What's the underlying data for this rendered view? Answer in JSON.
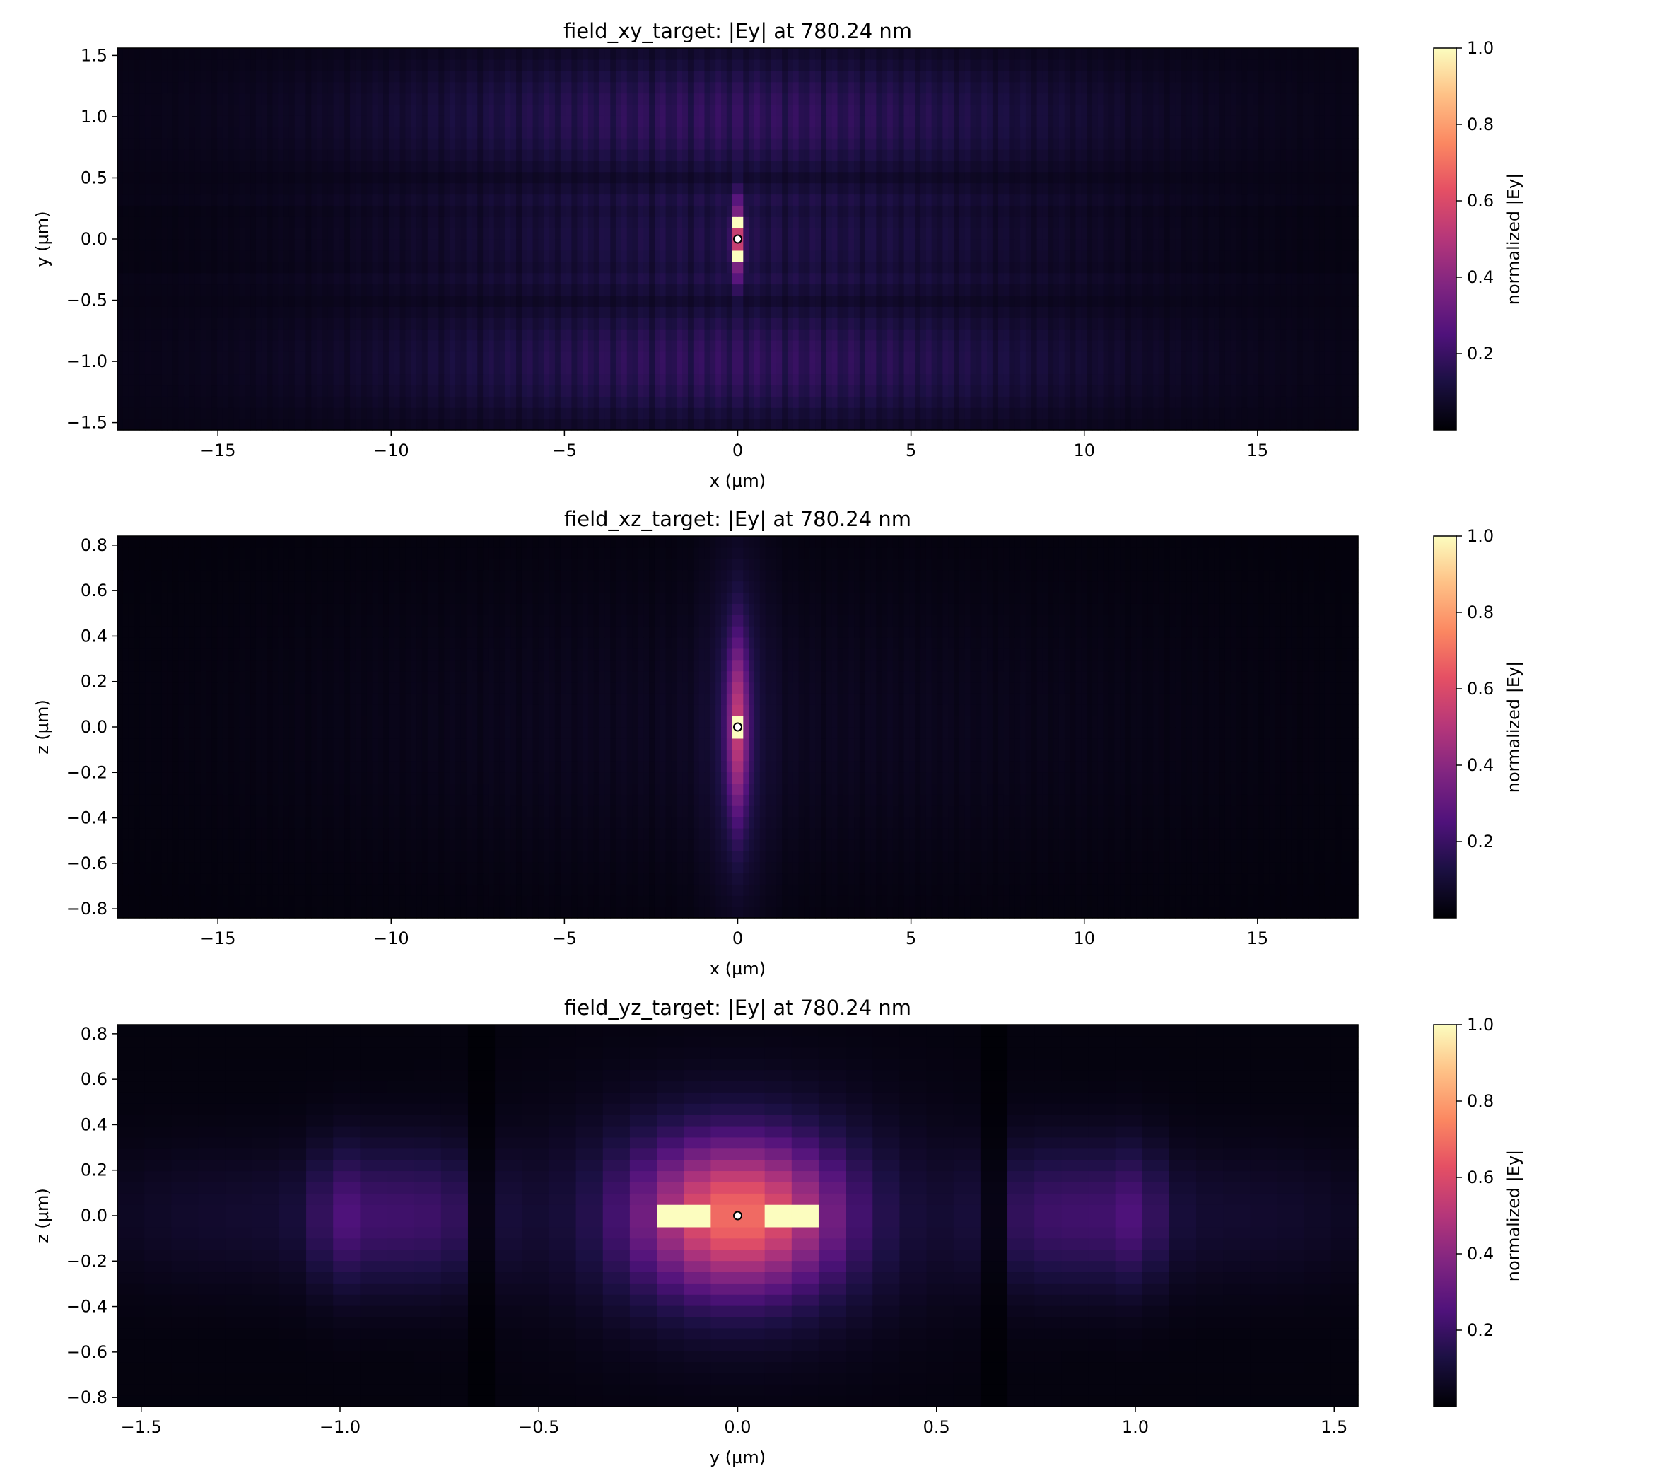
{
  "chart_data": [
    {
      "type": "heatmap",
      "title": "field_xy_target: |Ey| at 780.24 nm",
      "xlabel": "x (µm)",
      "ylabel": "y (µm)",
      "xlim": [
        -17.9,
        17.9
      ],
      "ylim": [
        -1.56,
        1.56
      ],
      "xticks": [
        -15,
        -10,
        -5,
        0,
        5,
        10,
        15
      ],
      "xtick_labels": [
        "−15",
        "−10",
        "−5",
        "0",
        "5",
        "10",
        "15"
      ],
      "yticks": [
        -1.5,
        -1.0,
        -0.5,
        0.0,
        0.5,
        1.0,
        1.5
      ],
      "ytick_labels": [
        "−1.5",
        "−1.0",
        "−0.5",
        "0.0",
        "0.5",
        "1.0",
        "1.5"
      ],
      "colormap": "magma",
      "colorbar": {
        "label": "normalized |Ey|",
        "range": [
          0.0,
          1.0
        ],
        "ticks": [
          0.2,
          0.4,
          0.6,
          0.8,
          1.0
        ],
        "tick_labels": [
          "0.2",
          "0.4",
          "0.6",
          "0.8",
          "1.0"
        ]
      },
      "peak_marker": {
        "x": 0.0,
        "y": 0.0
      },
      "field_summary": {
        "max": 1.0,
        "peak_at": [
          0.0,
          0.0
        ],
        "bright_bands_y": [
          -1.0,
          0.0,
          1.0
        ]
      }
    },
    {
      "type": "heatmap",
      "title": "field_xz_target: |Ey| at 780.24 nm",
      "xlabel": "x (µm)",
      "ylabel": "z (µm)",
      "xlim": [
        -17.9,
        17.9
      ],
      "ylim": [
        -0.84,
        0.84
      ],
      "xticks": [
        -15,
        -10,
        -5,
        0,
        5,
        10,
        15
      ],
      "xtick_labels": [
        "−15",
        "−10",
        "−5",
        "0",
        "5",
        "10",
        "15"
      ],
      "yticks": [
        -0.8,
        -0.6,
        -0.4,
        -0.2,
        0.0,
        0.2,
        0.4,
        0.6,
        0.8
      ],
      "ytick_labels": [
        "−0.8",
        "−0.6",
        "−0.4",
        "−0.2",
        "0.0",
        "0.2",
        "0.4",
        "0.6",
        "0.8"
      ],
      "colormap": "magma",
      "colorbar": {
        "label": "normalized |Ey|",
        "range": [
          0.0,
          1.0
        ],
        "ticks": [
          0.2,
          0.4,
          0.6,
          0.8,
          1.0
        ],
        "tick_labels": [
          "0.2",
          "0.4",
          "0.6",
          "0.8",
          "1.0"
        ]
      },
      "peak_marker": {
        "x": 0.0,
        "y": 0.0
      },
      "field_summary": {
        "max": 1.0,
        "peak_at": [
          0.0,
          0.0
        ]
      }
    },
    {
      "type": "heatmap",
      "title": "field_yz_target: |Ey| at 780.24 nm",
      "xlabel": "y (µm)",
      "ylabel": "z (µm)",
      "xlim": [
        -1.56,
        1.56
      ],
      "ylim": [
        -0.84,
        0.84
      ],
      "xticks": [
        -1.5,
        -1.0,
        -0.5,
        0.0,
        0.5,
        1.0,
        1.5
      ],
      "xtick_labels": [
        "−1.5",
        "−1.0",
        "−0.5",
        "0.0",
        "0.5",
        "1.0",
        "1.5"
      ],
      "yticks": [
        -0.8,
        -0.6,
        -0.4,
        -0.2,
        0.0,
        0.2,
        0.4,
        0.6,
        0.8
      ],
      "ytick_labels": [
        "−0.8",
        "−0.6",
        "−0.4",
        "−0.2",
        "0.0",
        "0.2",
        "0.4",
        "0.6",
        "0.8"
      ],
      "colormap": "magma",
      "colorbar": {
        "label": "normalized |Ey|",
        "range": [
          0.0,
          1.0
        ],
        "ticks": [
          0.2,
          0.4,
          0.6,
          0.8,
          1.0
        ],
        "tick_labels": [
          "0.2",
          "0.4",
          "0.6",
          "0.8",
          "1.0"
        ]
      },
      "peak_marker": {
        "x": 0.0,
        "y": 0.0
      },
      "field_summary": {
        "max": 1.0,
        "peak_at": [
          0.0,
          0.0
        ],
        "bright_spots_y": [
          -0.16,
          0.16
        ]
      }
    }
  ]
}
